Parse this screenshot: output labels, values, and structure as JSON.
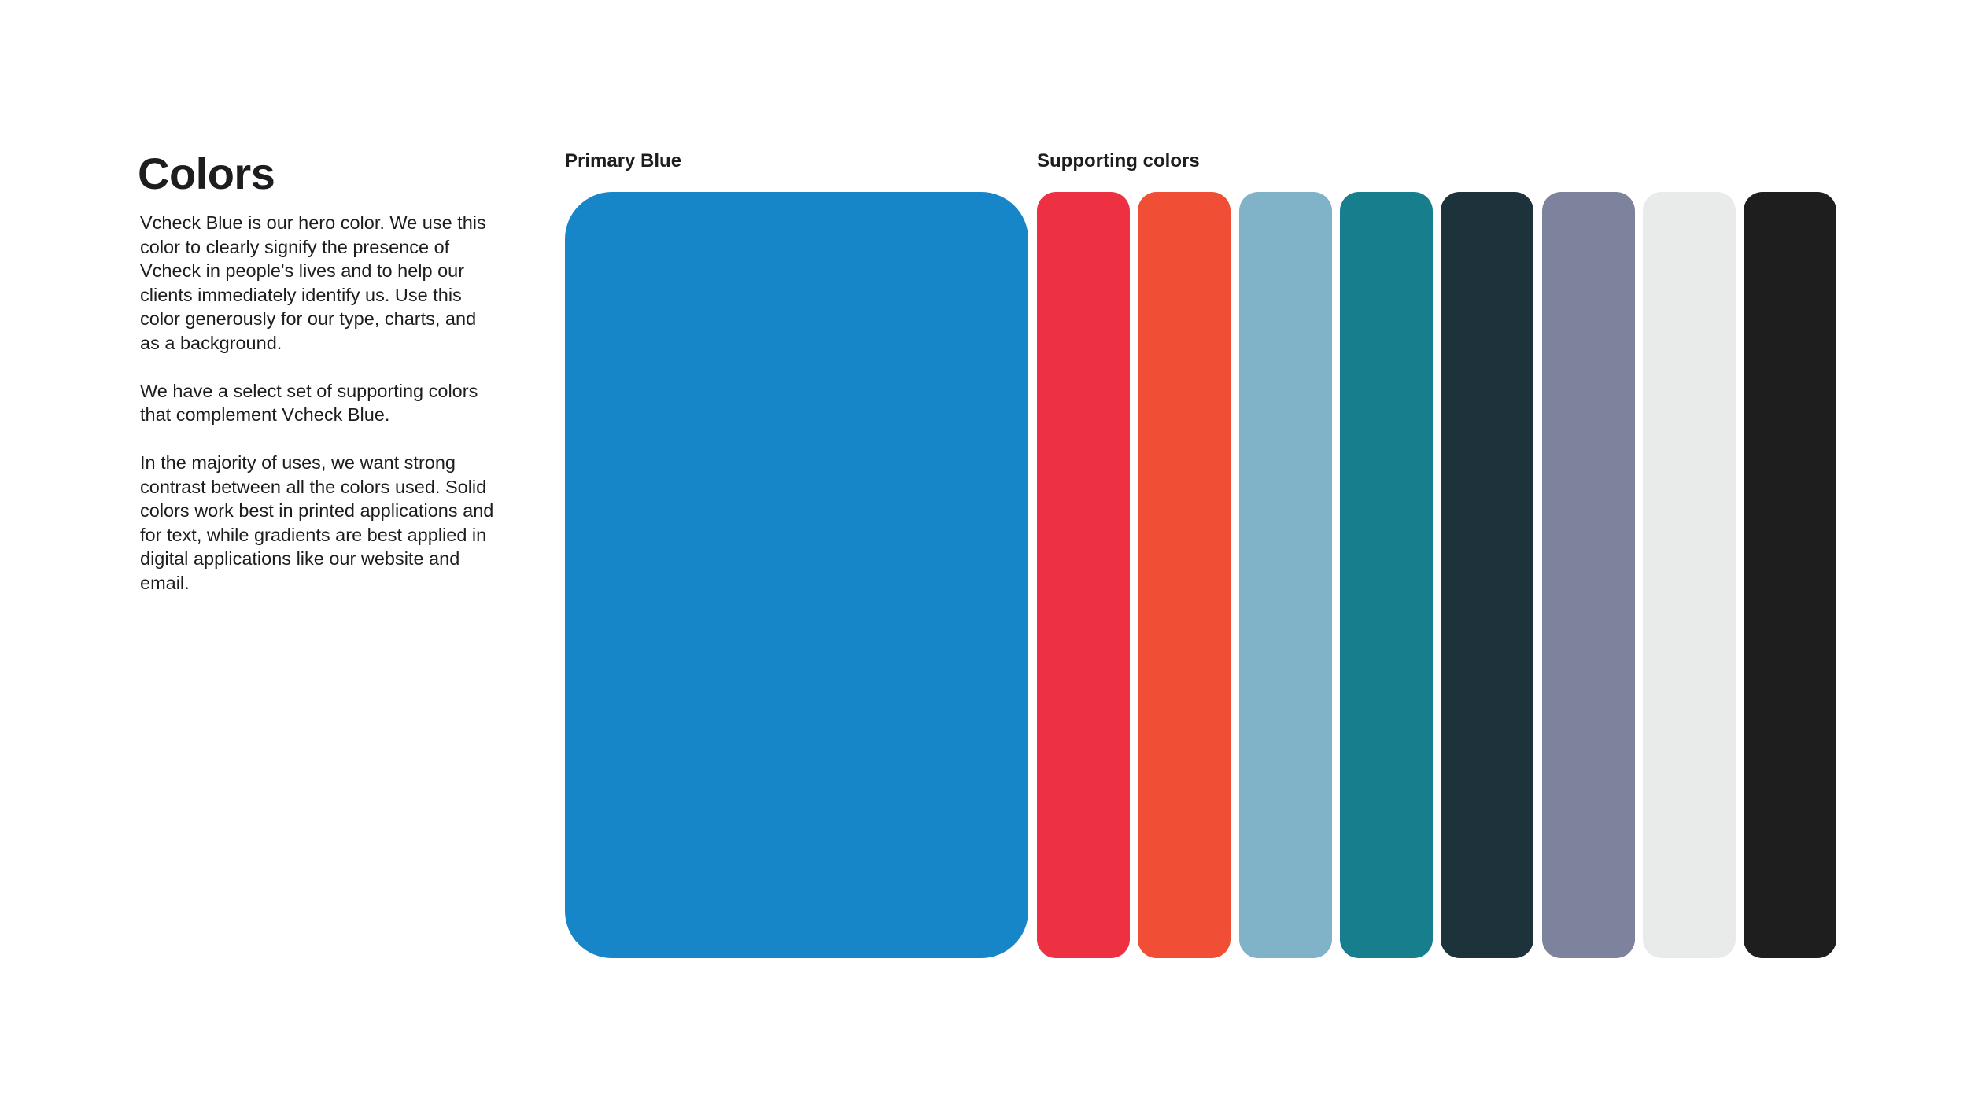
{
  "page": {
    "title": "Colors",
    "paragraphs": [
      "Vcheck Blue is our hero color. We use this color to clearly signify the presence of Vcheck in people's lives and to help our clients immediately identify us. Use this color generously for our type, charts, and as a background.",
      "We have a select set of supporting colors that complement Vcheck Blue.",
      "In the majority of uses, we want strong contrast between all the colors used. Solid colors work best in printed applications and for text, while gradients are best applied in digital applications like our website and email."
    ]
  },
  "primary": {
    "label": "Primary Blue",
    "color": "#1686c8"
  },
  "supporting": {
    "label": "Supporting colors",
    "colors": [
      "#ed3042",
      "#f04f35",
      "#80b3c8",
      "#177e8e",
      "#1e323b",
      "#7d839c",
      "#e9eaea",
      "#1e1e1f"
    ]
  }
}
